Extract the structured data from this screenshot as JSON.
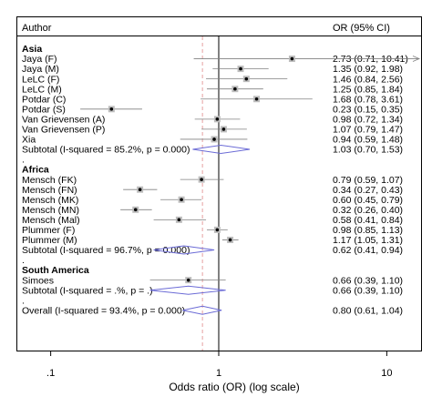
{
  "chart_data": {
    "type": "forest",
    "header": {
      "left": "Author",
      "right": "OR (95% CI)"
    },
    "xlabel": "Odds ratio (OR) (log scale)",
    "x_scale": "log",
    "xlim": [
      0.0625,
      16
    ],
    "xticks": [
      {
        "value": 0.1,
        "label": ".1"
      },
      {
        "value": 1,
        "label": "1"
      },
      {
        "value": 10,
        "label": "10"
      }
    ],
    "null_line": 1,
    "overall_line": 0.8,
    "rows": [
      {
        "kind": "group",
        "label": "Asia"
      },
      {
        "kind": "study",
        "label": "Jaya (F)",
        "or": 2.73,
        "lo": 0.71,
        "hi": 10.41,
        "text": "2.73 (0.71, 10.41)",
        "arrow": true
      },
      {
        "kind": "study",
        "label": "Jaya (M)",
        "or": 1.35,
        "lo": 0.92,
        "hi": 1.98,
        "text": "1.35 (0.92, 1.98)"
      },
      {
        "kind": "study",
        "label": "LeLC (F)",
        "or": 1.46,
        "lo": 0.84,
        "hi": 2.56,
        "text": "1.46 (0.84, 2.56)"
      },
      {
        "kind": "study",
        "label": "LeLC (M)",
        "or": 1.25,
        "lo": 0.85,
        "hi": 1.84,
        "text": "1.25 (0.85, 1.84)"
      },
      {
        "kind": "study",
        "label": "Potdar (C)",
        "or": 1.68,
        "lo": 0.78,
        "hi": 3.61,
        "text": "1.68 (0.78, 3.61)"
      },
      {
        "kind": "study",
        "label": "Potdar (S)",
        "or": 0.23,
        "lo": 0.15,
        "hi": 0.35,
        "text": "0.23 (0.15, 0.35)"
      },
      {
        "kind": "study",
        "label": "Van Grievensen (A)",
        "or": 0.98,
        "lo": 0.72,
        "hi": 1.34,
        "text": "0.98 (0.72, 1.34)"
      },
      {
        "kind": "study",
        "label": "Van Grievensen (P)",
        "or": 1.07,
        "lo": 0.79,
        "hi": 1.47,
        "text": "1.07 (0.79, 1.47)"
      },
      {
        "kind": "study",
        "label": "Xia",
        "or": 0.94,
        "lo": 0.59,
        "hi": 1.48,
        "text": "0.94 (0.59, 1.48)"
      },
      {
        "kind": "subtotal",
        "label": "Subtotal  (I-squared = 85.2%, p = 0.000)",
        "or": 1.03,
        "lo": 0.7,
        "hi": 1.53,
        "text": "1.03 (0.70, 1.53)"
      },
      {
        "kind": "dot",
        "label": "."
      },
      {
        "kind": "group",
        "label": "Africa"
      },
      {
        "kind": "study",
        "label": "Mensch (FK)",
        "or": 0.79,
        "lo": 0.59,
        "hi": 1.07,
        "text": "0.79 (0.59, 1.07)"
      },
      {
        "kind": "study",
        "label": "Mensch (FN)",
        "or": 0.34,
        "lo": 0.27,
        "hi": 0.43,
        "text": "0.34 (0.27, 0.43)"
      },
      {
        "kind": "study",
        "label": "Mensch (MK)",
        "or": 0.6,
        "lo": 0.45,
        "hi": 0.79,
        "text": "0.60 (0.45, 0.79)"
      },
      {
        "kind": "study",
        "label": "Mensch (MN)",
        "or": 0.32,
        "lo": 0.26,
        "hi": 0.4,
        "text": "0.32 (0.26, 0.40)"
      },
      {
        "kind": "study",
        "label": "Mensch (Mal)",
        "or": 0.58,
        "lo": 0.41,
        "hi": 0.84,
        "text": "0.58 (0.41, 0.84)"
      },
      {
        "kind": "study",
        "label": "Plummer (F)",
        "or": 0.98,
        "lo": 0.85,
        "hi": 1.13,
        "text": "0.98 (0.85, 1.13)"
      },
      {
        "kind": "study",
        "label": "Plummer (M)",
        "or": 1.17,
        "lo": 1.05,
        "hi": 1.31,
        "text": "1.17 (1.05, 1.31)"
      },
      {
        "kind": "subtotal",
        "label": "Subtotal  (I-squared = 96.7%, p = 0.000)",
        "or": 0.62,
        "lo": 0.41,
        "hi": 0.94,
        "text": "0.62 (0.41, 0.94)"
      },
      {
        "kind": "dot",
        "label": "."
      },
      {
        "kind": "group",
        "label": "South America"
      },
      {
        "kind": "study",
        "label": "Simoes",
        "or": 0.66,
        "lo": 0.39,
        "hi": 1.1,
        "text": "0.66 (0.39, 1.10)"
      },
      {
        "kind": "subtotal",
        "label": "Subtotal  (I-squared = .%, p = .)",
        "or": 0.66,
        "lo": 0.39,
        "hi": 1.1,
        "text": "0.66 (0.39, 1.10)"
      },
      {
        "kind": "dot",
        "label": "."
      },
      {
        "kind": "overall",
        "label": "Overall  (I-squared = 93.4%, p = 0.000)",
        "or": 0.8,
        "lo": 0.61,
        "hi": 1.04,
        "text": "0.80 (0.61, 1.04)"
      }
    ]
  },
  "colors": {
    "frame": "#000000",
    "diamond": "#6b6bd6",
    "null_line": "#000000",
    "overall_line": "#e6a0a0",
    "ci_line": "#808080",
    "marker": "#000000",
    "weight_box": "#bdbdbd"
  }
}
